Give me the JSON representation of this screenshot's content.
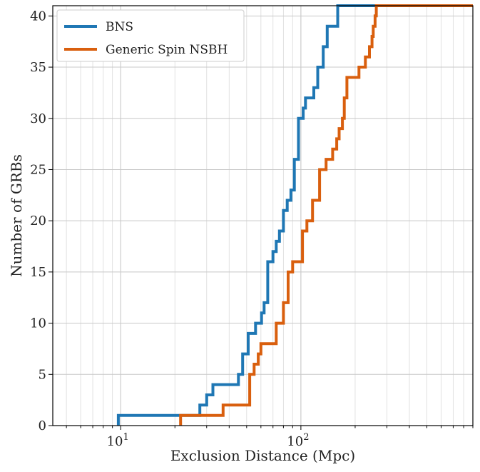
{
  "chart_data": {
    "type": "line",
    "step": true,
    "title": "",
    "xlabel": "Exclusion Distance (Mpc)",
    "ylabel": "Number of GRBs",
    "xscale": "log",
    "xlim": [
      4.2,
      900
    ],
    "ylim": [
      0,
      41
    ],
    "grid": true,
    "legend_position": "top-left",
    "x_ticks": [
      {
        "value": 10,
        "base": "10",
        "exp": "1"
      },
      {
        "value": 100,
        "base": "10",
        "exp": "2"
      }
    ],
    "y_ticks": [
      0,
      5,
      10,
      15,
      20,
      25,
      30,
      35,
      40
    ],
    "series": [
      {
        "name": "BNS",
        "color": "#1f77b4",
        "x": [
          9.7,
          27.5,
          30,
          32.5,
          37,
          45,
          47.5,
          51,
          56,
          60.5,
          62.5,
          65.5,
          70,
          73,
          76,
          80,
          84,
          88,
          92,
          97,
          103,
          106,
          112,
          118,
          124,
          133,
          140,
          149,
          160,
          168,
          174,
          180
        ],
        "y": [
          1,
          2,
          3,
          4,
          4,
          5,
          7,
          9,
          10,
          11,
          12,
          16,
          17,
          18,
          19,
          21,
          22,
          23,
          26,
          30,
          31,
          32,
          32,
          33,
          35,
          37,
          39,
          39,
          41,
          41,
          41,
          41
        ]
      },
      {
        "name": "Generic Spin NSBH",
        "color": "#d95f0e",
        "x": [
          21.5,
          37,
          52,
          55,
          58,
          60,
          65,
          73,
          80,
          85,
          90,
          96,
          102,
          108,
          116,
          127,
          138,
          150,
          158,
          163,
          170,
          174,
          180,
          186,
          198,
          210,
          228,
          240,
          248,
          252,
          258,
          262,
          265,
          267
        ],
        "y": [
          1,
          2,
          5,
          6,
          7,
          8,
          8,
          10,
          12,
          15,
          16,
          16,
          19,
          20,
          22,
          25,
          26,
          27,
          28,
          29,
          30,
          32,
          34,
          34,
          34,
          35,
          36,
          37,
          38,
          39,
          40,
          41,
          41,
          41
        ]
      }
    ]
  }
}
